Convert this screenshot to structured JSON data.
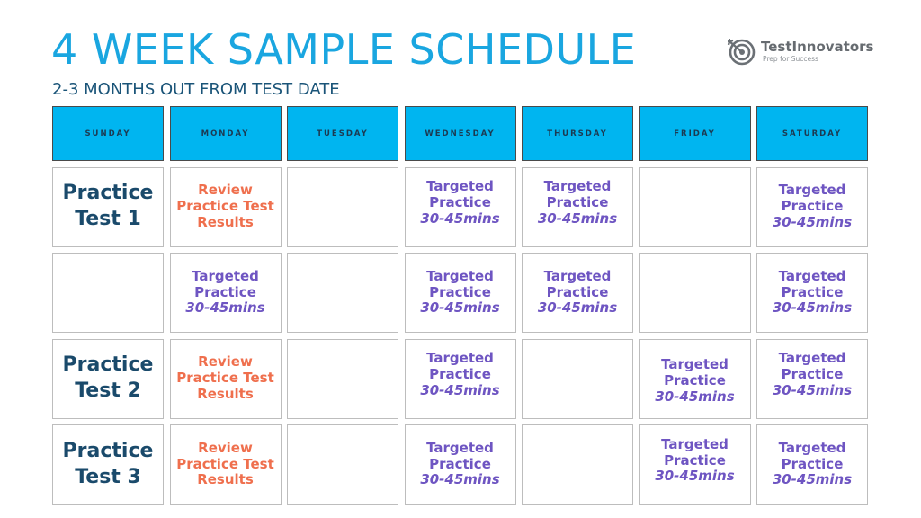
{
  "header": {
    "title": "4 WEEK SAMPLE SCHEDULE",
    "subtitle": "2-3 MONTHS OUT FROM TEST DATE"
  },
  "logo": {
    "name": "TestInnovators",
    "tagline": "Prep for Success",
    "icon": "target-arrow-icon"
  },
  "colors": {
    "title": "#1aa6e0",
    "header_bg": "#00b5f0",
    "practice_test": "#1a4a6b",
    "review": "#ef6f4d",
    "targeted": "#6e55c2"
  },
  "days": [
    "SUNDAY",
    "MONDAY",
    "TUESDAY",
    "WEDNESDAY",
    "THURSDAY",
    "FRIDAY",
    "SATURDAY"
  ],
  "weeks": [
    {
      "sunday": {
        "lines": [
          "Practice",
          "Test 1"
        ]
      },
      "monday": {
        "lines": [
          "Review",
          "Practice Test",
          "Results"
        ]
      },
      "tuesday": {
        "lines": []
      },
      "wednesday": {
        "lines": [
          "Targeted",
          "Practice",
          "30-45mins"
        ]
      },
      "thursday": {
        "lines": [
          "Targeted",
          "Practice",
          "30-45mins"
        ]
      },
      "friday": {
        "lines": []
      },
      "saturday": {
        "lines": [
          "Targeted",
          "Practice",
          "30-45mins"
        ]
      }
    },
    {
      "sunday": {
        "lines": []
      },
      "monday": {
        "lines": [
          "Targeted",
          "Practice",
          "30-45mins"
        ]
      },
      "tuesday": {
        "lines": []
      },
      "wednesday": {
        "lines": [
          "Targeted",
          "Practice",
          "30-45mins"
        ]
      },
      "thursday": {
        "lines": [
          "Targeted",
          "Practice",
          "30-45mins"
        ]
      },
      "friday": {
        "lines": []
      },
      "saturday": {
        "lines": [
          "Targeted",
          "Practice",
          "30-45mins"
        ]
      }
    },
    {
      "sunday": {
        "lines": [
          "Practice",
          "Test 2"
        ]
      },
      "monday": {
        "lines": [
          "Review",
          "Practice Test",
          "Results"
        ]
      },
      "tuesday": {
        "lines": []
      },
      "wednesday": {
        "lines": [
          "Targeted",
          "Practice",
          "30-45mins"
        ]
      },
      "thursday": {
        "lines": []
      },
      "friday": {
        "lines": [
          "Targeted",
          "Practice",
          "30-45mins"
        ]
      },
      "saturday": {
        "lines": [
          "Targeted",
          "Practice",
          "30-45mins"
        ]
      }
    },
    {
      "sunday": {
        "lines": [
          "Practice",
          "Test 3"
        ]
      },
      "monday": {
        "lines": [
          "Review",
          "Practice Test",
          "Results"
        ]
      },
      "tuesday": {
        "lines": []
      },
      "wednesday": {
        "lines": [
          "Targeted",
          "Practice",
          "30-45mins"
        ]
      },
      "thursday": {
        "lines": []
      },
      "friday": {
        "lines": [
          "Targeted",
          "Practice",
          "30-45mins"
        ]
      },
      "saturday": {
        "lines": [
          "Targeted",
          "Practice",
          "30-45mins"
        ]
      }
    }
  ]
}
